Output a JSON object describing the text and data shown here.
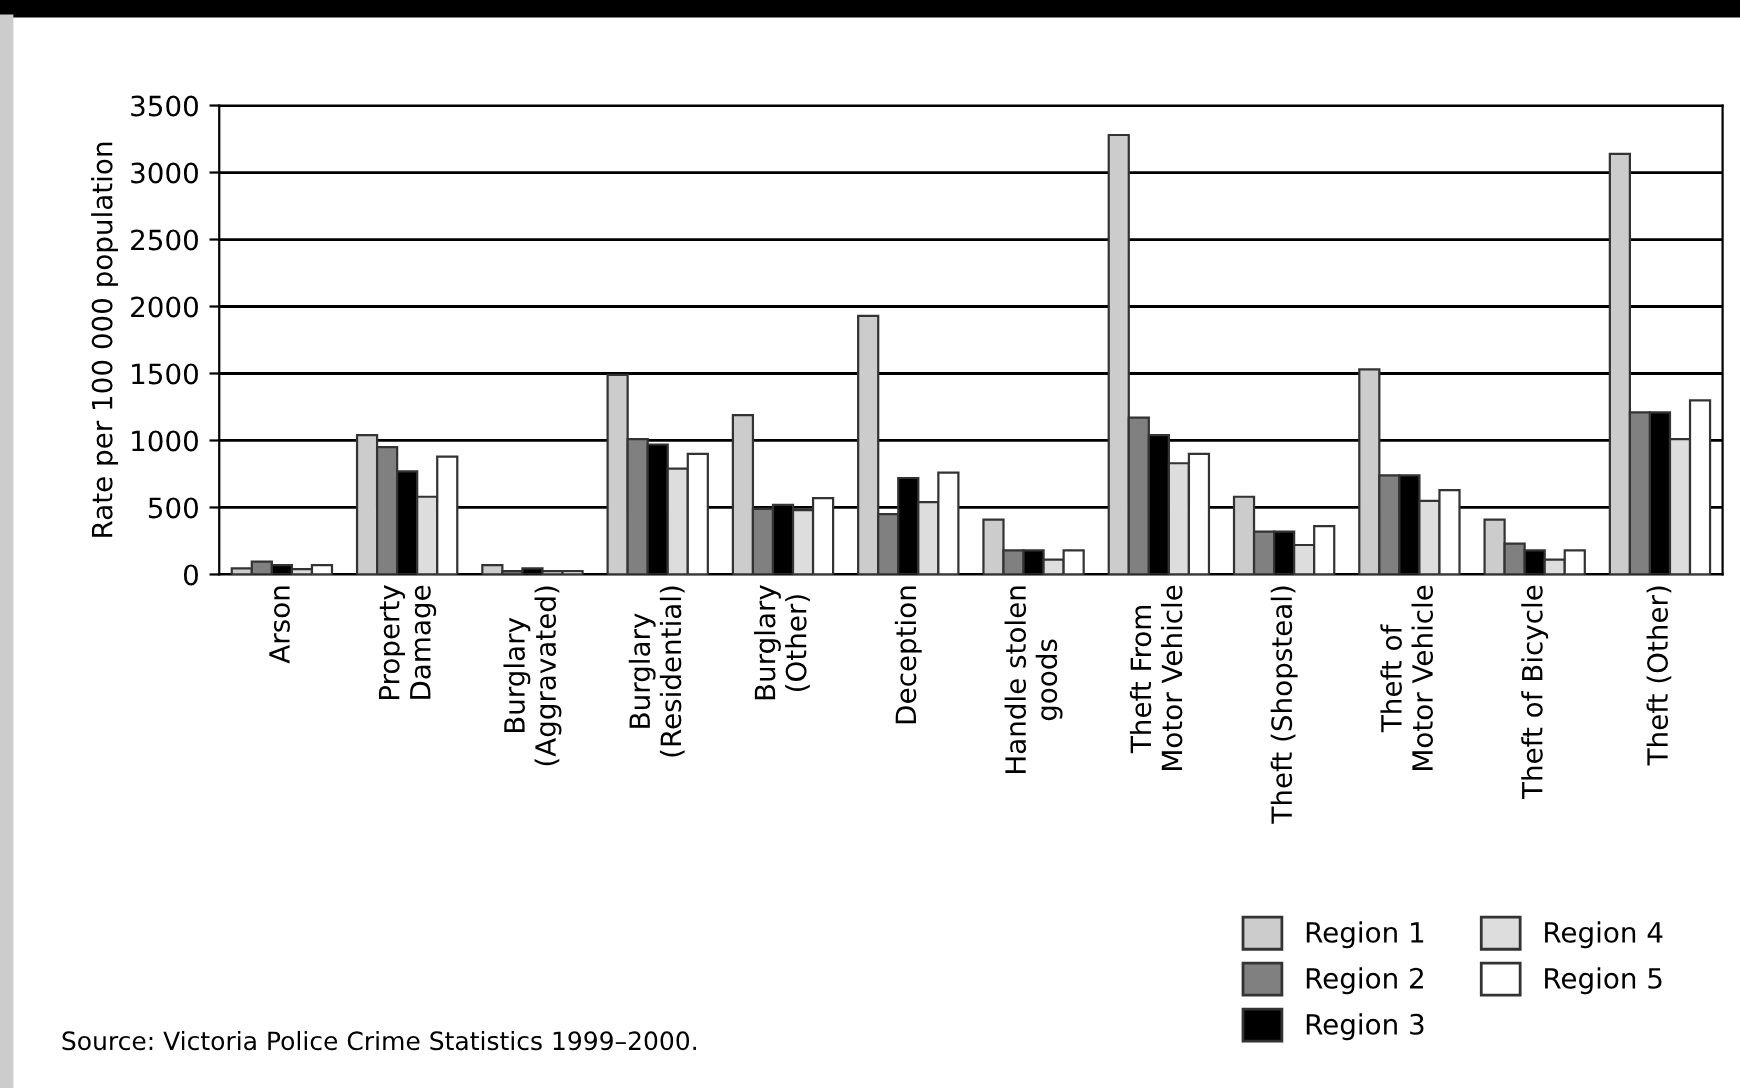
{
  "chart_data": {
    "type": "bar",
    "ylabel": "Rate per 100 000 population",
    "categories": [
      "Arson",
      "Property\nDamage",
      "Burglary\n(Aggravated)",
      "Burglary\n(Residential)",
      "Burglary\n(Other)",
      "Deception",
      "Handle stolen\ngoods",
      "Theft From\nMotor Vehicle",
      "Theft (Shopsteal)",
      "Theft of\nMotor Vehicle",
      "Theft of Bicycle",
      "Theft (Other)"
    ],
    "series": [
      {
        "name": "Region 1",
        "color": "#cccccc",
        "values": [
          45,
          1040,
          70,
          1490,
          1190,
          1930,
          410,
          3280,
          580,
          1530,
          410,
          3140
        ]
      },
      {
        "name": "Region 2",
        "color": "#808080",
        "values": [
          95,
          950,
          25,
          1010,
          490,
          450,
          180,
          1170,
          320,
          740,
          230,
          1210
        ]
      },
      {
        "name": "Region 3",
        "color": "#000000",
        "values": [
          70,
          770,
          45,
          970,
          520,
          720,
          180,
          1040,
          320,
          740,
          180,
          1210
        ]
      },
      {
        "name": "Region 4",
        "color": "#dddddd",
        "values": [
          40,
          580,
          25,
          790,
          480,
          540,
          110,
          830,
          220,
          550,
          110,
          1010
        ]
      },
      {
        "name": "Region 5",
        "color": "#ffffff",
        "values": [
          70,
          880,
          25,
          900,
          570,
          760,
          180,
          900,
          360,
          630,
          180,
          1300
        ]
      }
    ],
    "ylim": [
      0,
      3500
    ],
    "yticks": [
      0,
      500,
      1000,
      1500,
      2000,
      2500,
      3000,
      3500
    ],
    "grid": "y",
    "legend": "bottom right",
    "annotations": [
      "Source: Victoria Police Crime Statistics 1999–2000."
    ]
  }
}
